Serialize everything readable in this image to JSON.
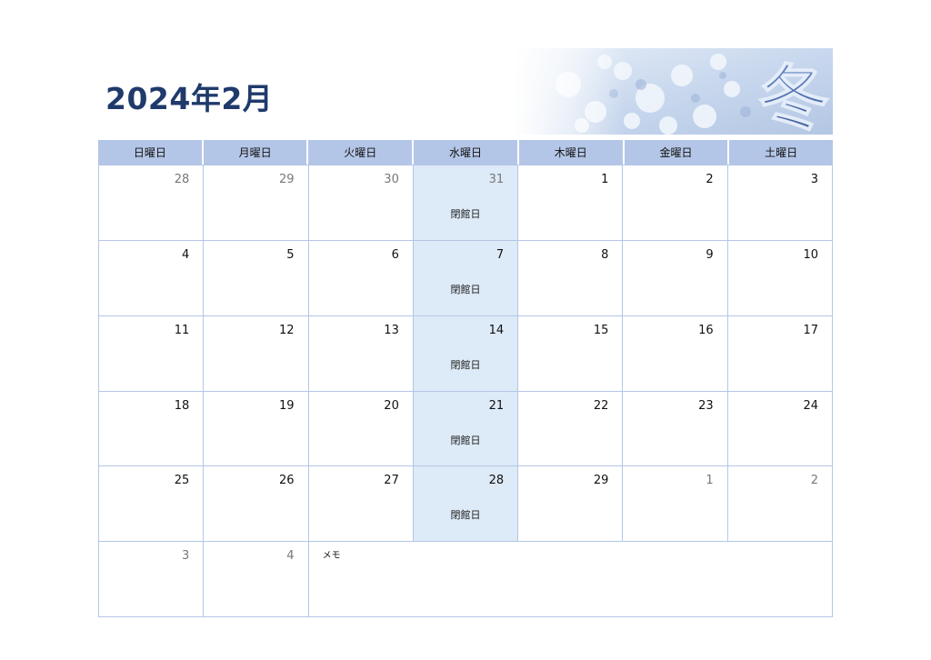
{
  "title": "2024年2月",
  "banner": {
    "glyph": "冬",
    "accent": "#b8cbe8"
  },
  "weekdays": [
    "日曜日",
    "月曜日",
    "火曜日",
    "水曜日",
    "木曜日",
    "金曜日",
    "土曜日"
  ],
  "weeks": [
    [
      {
        "day": "28",
        "muted": true
      },
      {
        "day": "29",
        "muted": true
      },
      {
        "day": "30",
        "muted": true
      },
      {
        "day": "31",
        "muted": true,
        "note": "閉館日"
      },
      {
        "day": "1"
      },
      {
        "day": "2"
      },
      {
        "day": "3"
      }
    ],
    [
      {
        "day": "4"
      },
      {
        "day": "5"
      },
      {
        "day": "6"
      },
      {
        "day": "7",
        "note": "閉館日"
      },
      {
        "day": "8"
      },
      {
        "day": "9"
      },
      {
        "day": "10"
      }
    ],
    [
      {
        "day": "11"
      },
      {
        "day": "12"
      },
      {
        "day": "13"
      },
      {
        "day": "14",
        "note": "閉館日"
      },
      {
        "day": "15"
      },
      {
        "day": "16"
      },
      {
        "day": "17"
      }
    ],
    [
      {
        "day": "18"
      },
      {
        "day": "19"
      },
      {
        "day": "20"
      },
      {
        "day": "21",
        "note": "閉館日"
      },
      {
        "day": "22"
      },
      {
        "day": "23"
      },
      {
        "day": "24"
      }
    ],
    [
      {
        "day": "25"
      },
      {
        "day": "26"
      },
      {
        "day": "27"
      },
      {
        "day": "28",
        "note": "閉館日"
      },
      {
        "day": "29"
      },
      {
        "day": "1",
        "muted": true
      },
      {
        "day": "2",
        "muted": true
      }
    ]
  ],
  "last_row": [
    {
      "day": "3",
      "muted": true
    },
    {
      "day": "4",
      "muted": true
    }
  ],
  "memo_label": "メモ",
  "colors": {
    "title": "#1f3a6b",
    "header": "#b4c6e7",
    "closed": "#ddeaf7",
    "grid": "#b4c6e7"
  }
}
